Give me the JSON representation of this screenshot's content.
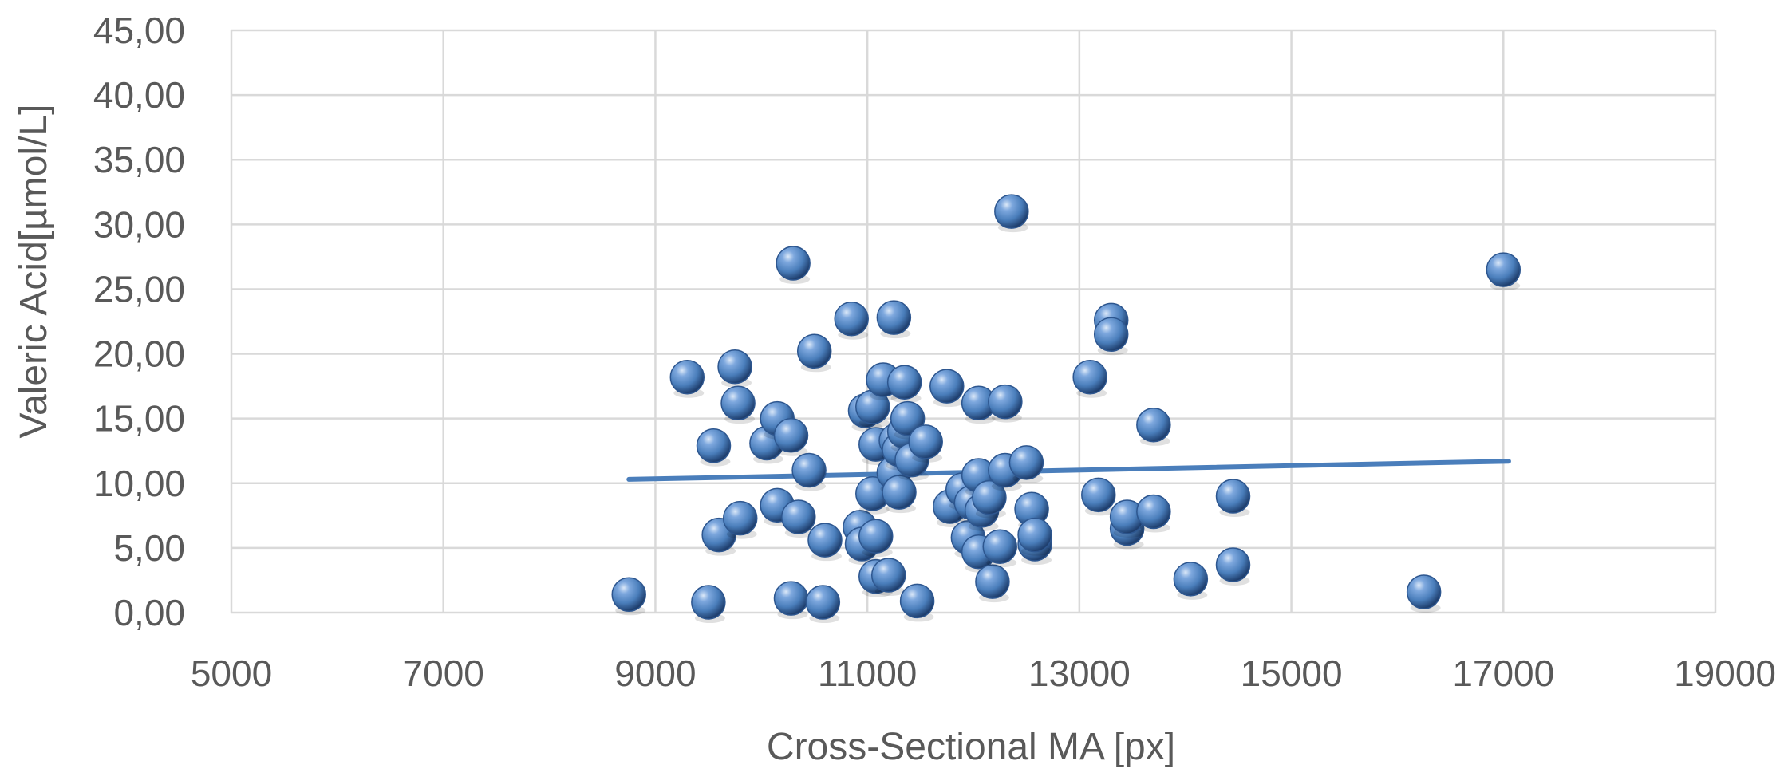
{
  "chart_data": {
    "type": "scatter",
    "title": "",
    "xlabel": "Cross-Sectional MA [px]",
    "ylabel": "Valeric Acid[µmol/L]",
    "xlim": [
      5000,
      19000
    ],
    "ylim": [
      0,
      45
    ],
    "x_ticks": [
      5000,
      7000,
      9000,
      11000,
      13000,
      15000,
      17000,
      19000
    ],
    "x_tick_labels": [
      "5000",
      "7000",
      "9000",
      "11000",
      "13000",
      "15000",
      "17000",
      "19000"
    ],
    "y_ticks": [
      0,
      5,
      10,
      15,
      20,
      25,
      30,
      35,
      40,
      45
    ],
    "y_tick_labels": [
      "0,00",
      "5,00",
      "10,00",
      "15,00",
      "20,00",
      "25,00",
      "30,00",
      "35,00",
      "40,00",
      "45,00"
    ],
    "grid": true,
    "legend": "none",
    "marker_color": "#4a7ebb",
    "series": [
      {
        "points": [
          [
            8750,
            1.4
          ],
          [
            9300,
            18.2
          ],
          [
            9500,
            0.8
          ],
          [
            9550,
            12.9
          ],
          [
            9600,
            6.0
          ],
          [
            9750,
            19.0
          ],
          [
            9780,
            16.2
          ],
          [
            9800,
            7.3
          ],
          [
            10050,
            13.1
          ],
          [
            10150,
            8.3
          ],
          [
            10150,
            15.0
          ],
          [
            10280,
            13.7
          ],
          [
            10300,
            27.0
          ],
          [
            10280,
            1.1
          ],
          [
            10350,
            7.4
          ],
          [
            10450,
            11.0
          ],
          [
            10500,
            20.2
          ],
          [
            10600,
            5.6
          ],
          [
            10580,
            0.8
          ],
          [
            10850,
            22.7
          ],
          [
            10930,
            6.6
          ],
          [
            10950,
            5.3
          ],
          [
            10980,
            15.6
          ],
          [
            11050,
            15.9
          ],
          [
            11050,
            9.2
          ],
          [
            11080,
            2.8
          ],
          [
            11080,
            5.9
          ],
          [
            11080,
            13.0
          ],
          [
            11150,
            18.0
          ],
          [
            11200,
            2.9
          ],
          [
            11250,
            10.8
          ],
          [
            11250,
            22.8
          ],
          [
            11270,
            13.3
          ],
          [
            11300,
            12.6
          ],
          [
            11300,
            9.3
          ],
          [
            11350,
            14.0
          ],
          [
            11350,
            17.8
          ],
          [
            11380,
            15.0
          ],
          [
            11420,
            11.8
          ],
          [
            11470,
            0.9
          ],
          [
            11550,
            13.2
          ],
          [
            11750,
            17.5
          ],
          [
            11780,
            8.2
          ],
          [
            11900,
            9.5
          ],
          [
            11950,
            5.8
          ],
          [
            11980,
            8.5
          ],
          [
            12050,
            4.7
          ],
          [
            12050,
            16.2
          ],
          [
            12050,
            10.6
          ],
          [
            12080,
            7.9
          ],
          [
            12150,
            8.9
          ],
          [
            12180,
            2.4
          ],
          [
            12250,
            5.1
          ],
          [
            12300,
            16.3
          ],
          [
            12300,
            11.0
          ],
          [
            12360,
            31.0
          ],
          [
            12500,
            11.6
          ],
          [
            12550,
            8.0
          ],
          [
            12580,
            5.3
          ],
          [
            12580,
            6.0
          ],
          [
            13100,
            18.2
          ],
          [
            13180,
            9.1
          ],
          [
            13300,
            22.6
          ],
          [
            13300,
            21.5
          ],
          [
            13450,
            6.5
          ],
          [
            13450,
            7.4
          ],
          [
            13700,
            14.5
          ],
          [
            13700,
            7.8
          ],
          [
            14050,
            2.6
          ],
          [
            14450,
            9.0
          ],
          [
            14450,
            3.7
          ],
          [
            16250,
            1.6
          ],
          [
            17000,
            26.5
          ]
        ]
      }
    ],
    "trendline": {
      "type": "linear",
      "from": [
        8750,
        10.3
      ],
      "to": [
        17050,
        11.7
      ]
    }
  }
}
